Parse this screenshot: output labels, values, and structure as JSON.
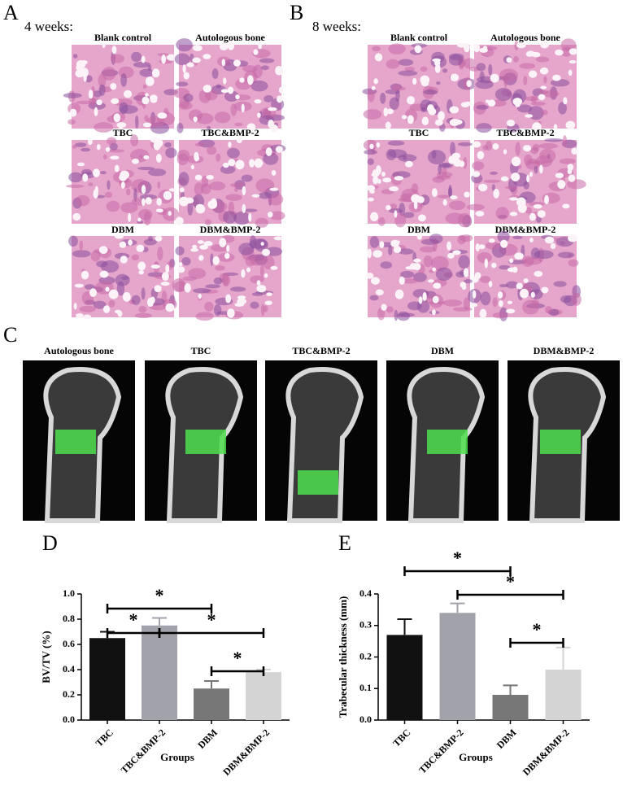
{
  "panels": {
    "A": {
      "letter": "A",
      "subtitle": "4 weeks:",
      "images": [
        "Blank control",
        "Autologous bone",
        "TBC",
        "TBC&BMP-2",
        "DBM",
        "DBM&BMP-2"
      ]
    },
    "B": {
      "letter": "B",
      "subtitle": "8 weeks:",
      "images": [
        "Blank control",
        "Autologous bone",
        "TBC",
        "TBC&BMP-2",
        "DBM",
        "DBM&BMP-2"
      ]
    },
    "C": {
      "letter": "C",
      "images": [
        "Autologous bone",
        "TBC",
        "TBC&BMP-2",
        "DBM",
        "DBM&BMP-2"
      ]
    }
  },
  "chart_data": [
    {
      "type": "bar",
      "panel_label": "D",
      "ylabel": "BV/TV (%)",
      "xlabel": "Groups",
      "categories": [
        "TBC",
        "TBC&BMP-2",
        "DBM",
        "DBM&BMP-2"
      ],
      "values": [
        0.65,
        0.75,
        0.25,
        0.38
      ],
      "errors": [
        0.05,
        0.06,
        0.06,
        0.02
      ],
      "colors": [
        "#111111",
        "#a2a2aa",
        "#777777",
        "#d4d4d4"
      ],
      "ylim": [
        0,
        1.0
      ],
      "yticks": [
        {
          "value": 0,
          "label": "0.0"
        },
        0.2,
        0.4,
        0.6,
        0.8,
        {
          "value": 1.0,
          "label": "1.0"
        }
      ],
      "significance": [
        {
          "label": "*",
          "groups": [
            "TBC",
            "DBM"
          ]
        },
        {
          "label": "*",
          "groups": [
            "TBC",
            "TBC&BMP-2"
          ]
        },
        {
          "label": "*",
          "groups": [
            "TBC&BMP-2",
            "DBM&BMP-2"
          ]
        },
        {
          "label": "*",
          "groups": [
            "DBM",
            "DBM&BMP-2"
          ]
        }
      ]
    },
    {
      "type": "bar",
      "panel_label": "E",
      "ylabel": "Trabecular thickness (mm)",
      "xlabel": "Groups",
      "categories": [
        "TBC",
        "TBC&BMP-2",
        "DBM",
        "DBM&BMP-2"
      ],
      "values": [
        0.27,
        0.34,
        0.08,
        0.16
      ],
      "errors": [
        0.05,
        0.03,
        0.03,
        0.07
      ],
      "colors": [
        "#111111",
        "#a2a2aa",
        "#777777",
        "#d4d4d4"
      ],
      "ylim": [
        0,
        0.4
      ],
      "yticks": [
        {
          "value": 0,
          "label": "0.0"
        },
        0.1,
        0.2,
        0.3,
        0.4
      ],
      "significance": [
        {
          "label": "*",
          "groups": [
            "TBC",
            "DBM"
          ]
        },
        {
          "label": "*",
          "groups": [
            "TBC&BMP-2",
            "DBM&BMP-2"
          ]
        },
        {
          "label": "*",
          "groups": [
            "DBM",
            "DBM&BMP-2"
          ]
        }
      ]
    }
  ]
}
